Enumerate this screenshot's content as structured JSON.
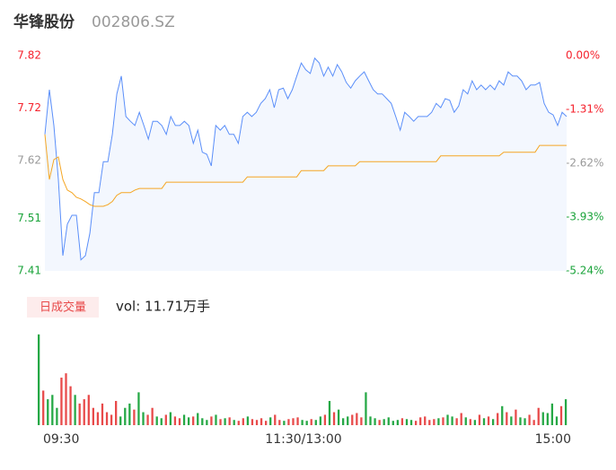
{
  "chart_data": [
    {
      "type": "line",
      "title": "华锋股份",
      "subtitle": "002806.SZ",
      "series": [
        {
          "name": "price",
          "color": "#5b8ff9",
          "values": [
            7.67,
            7.755,
            7.687,
            7.584,
            7.439,
            7.499,
            7.516,
            7.516,
            7.431,
            7.439,
            7.482,
            7.559,
            7.559,
            7.618,
            7.618,
            7.67,
            7.747,
            7.781,
            7.704,
            7.695,
            7.687,
            7.712,
            7.687,
            7.661,
            7.695,
            7.695,
            7.687,
            7.67,
            7.704,
            7.687,
            7.687,
            7.695,
            7.687,
            7.653,
            7.678,
            7.636,
            7.632,
            7.61,
            7.687,
            7.678,
            7.687,
            7.67,
            7.67,
            7.653,
            7.704,
            7.712,
            7.704,
            7.712,
            7.729,
            7.738,
            7.755,
            7.721,
            7.755,
            7.758,
            7.738,
            7.755,
            7.781,
            7.806,
            7.793,
            7.786,
            7.815,
            7.806,
            7.781,
            7.798,
            7.781,
            7.803,
            7.789,
            7.769,
            7.758,
            7.772,
            7.781,
            7.789,
            7.772,
            7.755,
            7.747,
            7.747,
            7.738,
            7.729,
            7.704,
            7.678,
            7.712,
            7.704,
            7.695,
            7.704,
            7.704,
            7.704,
            7.712,
            7.729,
            7.721,
            7.738,
            7.735,
            7.712,
            7.724,
            7.755,
            7.747,
            7.772,
            7.755,
            7.764,
            7.755,
            7.764,
            7.755,
            7.772,
            7.764,
            7.789,
            7.781,
            7.781,
            7.772,
            7.755,
            7.764,
            7.764,
            7.769,
            7.729,
            7.712,
            7.707,
            7.687,
            7.712,
            7.704
          ]
        },
        {
          "name": "average",
          "color": "#f5a623",
          "values": [
            7.67,
            7.584,
            7.622,
            7.627,
            7.584,
            7.564,
            7.559,
            7.55,
            7.547,
            7.542,
            7.536,
            7.533,
            7.533,
            7.533,
            7.536,
            7.542,
            7.554,
            7.559,
            7.559,
            7.559,
            7.564,
            7.567,
            7.567,
            7.567,
            7.567,
            7.567,
            7.567,
            7.579,
            7.579,
            7.579,
            7.579,
            7.579,
            7.579,
            7.579,
            7.579,
            7.579,
            7.579,
            7.579,
            7.579,
            7.579,
            7.579,
            7.579,
            7.579,
            7.579,
            7.579,
            7.589,
            7.589,
            7.589,
            7.589,
            7.589,
            7.589,
            7.589,
            7.589,
            7.589,
            7.589,
            7.589,
            7.589,
            7.601,
            7.601,
            7.601,
            7.601,
            7.601,
            7.601,
            7.61,
            7.61,
            7.61,
            7.61,
            7.61,
            7.61,
            7.61,
            7.618,
            7.618,
            7.618,
            7.618,
            7.618,
            7.618,
            7.618,
            7.618,
            7.618,
            7.618,
            7.618,
            7.618,
            7.618,
            7.618,
            7.618,
            7.618,
            7.618,
            7.618,
            7.629,
            7.629,
            7.629,
            7.629,
            7.629,
            7.629,
            7.629,
            7.629,
            7.629,
            7.629,
            7.629,
            7.629,
            7.629,
            7.629,
            7.636,
            7.636,
            7.636,
            7.636,
            7.636,
            7.636,
            7.636,
            7.636,
            7.649,
            7.649,
            7.649,
            7.649,
            7.649,
            7.649,
            7.649
          ]
        }
      ],
      "ylim": [
        7.41,
        7.82
      ],
      "yticks": [
        7.82,
        7.72,
        7.62,
        7.51,
        7.41
      ],
      "y2lim": [
        -5.24,
        0
      ],
      "y2ticks": [
        {
          "value": 0,
          "label": "0.00%"
        },
        {
          "value": -1.31,
          "label": "-1.31%"
        },
        {
          "value": -2.62,
          "label": "-2.62%"
        },
        {
          "value": -3.93,
          "label": "-3.93%"
        },
        {
          "value": -5.24,
          "label": "-5.24%"
        }
      ],
      "up_color": "#f5222d",
      "down_color": "#1aa33a",
      "flat_color": "#999999",
      "area_color": "#f3f7fe"
    },
    {
      "type": "bar",
      "label": "日成交量",
      "summary": "vol: 11.71万手",
      "values": [
        105,
        40,
        30,
        35,
        20,
        55,
        60,
        45,
        35,
        25,
        30,
        35,
        20,
        15,
        25,
        15,
        12,
        28,
        10,
        20,
        25,
        18,
        38,
        15,
        12,
        20,
        10,
        8,
        12,
        15,
        10,
        8,
        12,
        9,
        10,
        14,
        8,
        6,
        10,
        12,
        7,
        8,
        9,
        6,
        5,
        8,
        10,
        7,
        6,
        8,
        5,
        9,
        12,
        6,
        5,
        7,
        8,
        9,
        6,
        5,
        7,
        6,
        10,
        12,
        28,
        15,
        18,
        8,
        10,
        12,
        14,
        9,
        38,
        10,
        8,
        6,
        7,
        9,
        5,
        6,
        8,
        7,
        6,
        5,
        9,
        10,
        6,
        7,
        8,
        9,
        12,
        10,
        8,
        14,
        9,
        7,
        6,
        12,
        8,
        10,
        7,
        14,
        22,
        15,
        10,
        18,
        9,
        8,
        12,
        6,
        20,
        15,
        14,
        25,
        10,
        22,
        30
      ],
      "ylim": [
        0,
        110
      ],
      "xticks": [
        {
          "value": 0,
          "label": "09:30"
        },
        {
          "value": 58,
          "label": "11:30/13:00"
        },
        {
          "value": 116,
          "label": "15:00"
        }
      ],
      "up_color": "#e84a4a",
      "down_color": "#25a845"
    }
  ]
}
